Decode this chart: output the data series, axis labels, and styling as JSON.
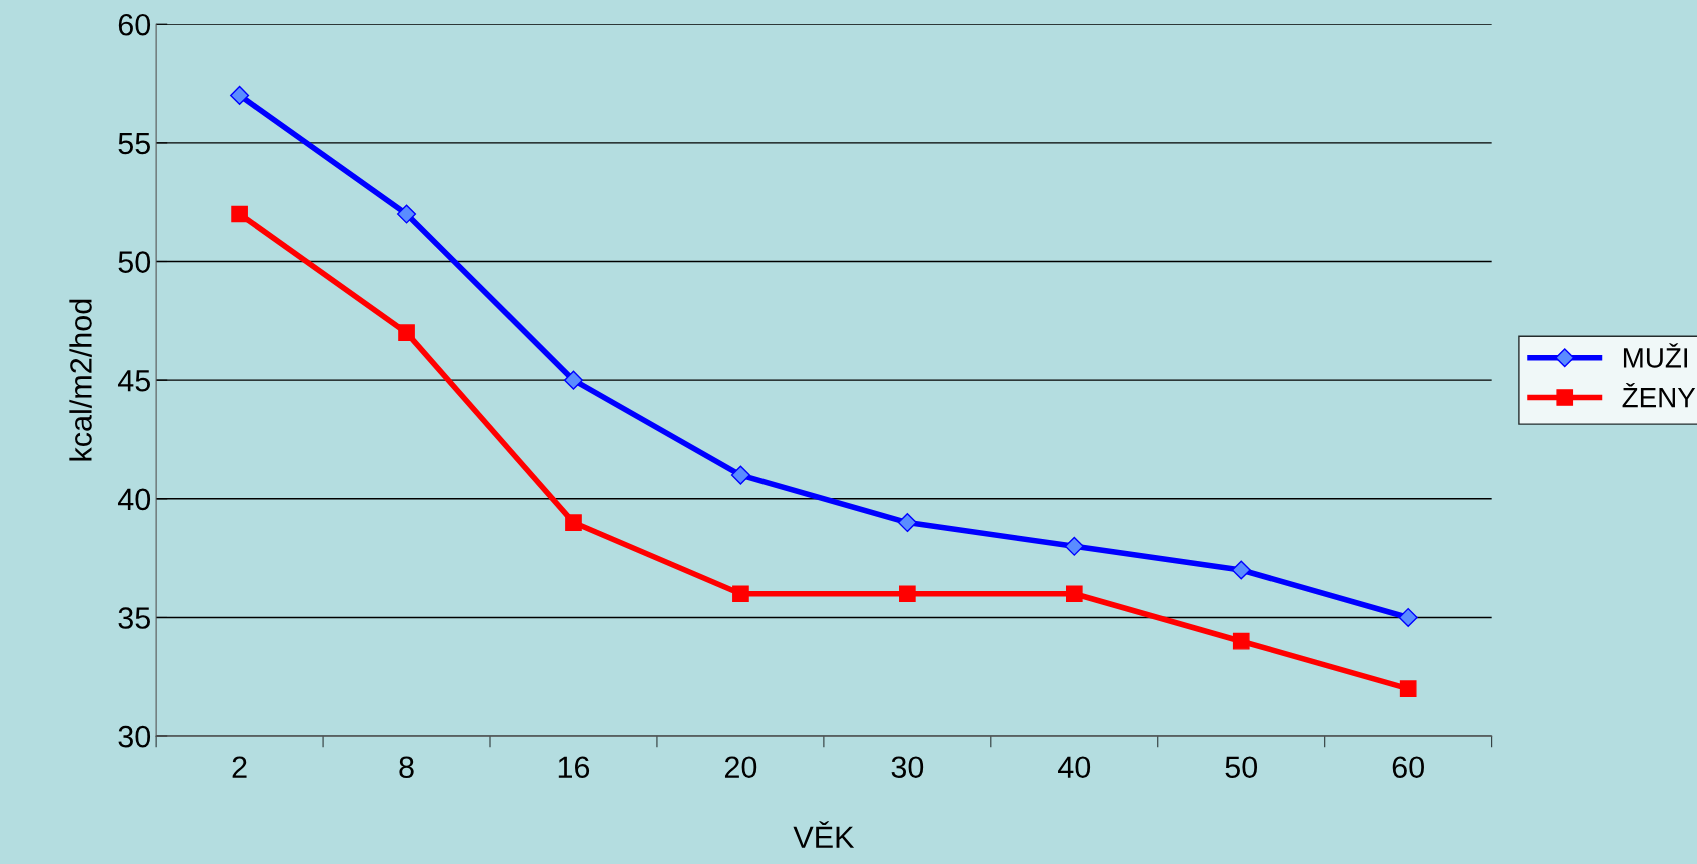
{
  "chart_data": {
    "type": "line",
    "xlabel": "VĚK",
    "ylabel": "kcal/m2/hod",
    "categories": [
      "2",
      "8",
      "16",
      "20",
      "30",
      "40",
      "50",
      "60"
    ],
    "series": [
      {
        "name": "MUŽI",
        "color": "#0000ff",
        "marker": "diamond",
        "values": [
          57,
          52,
          45,
          41,
          39,
          38,
          37,
          35
        ]
      },
      {
        "name": "ŽENY",
        "color": "#ff0000",
        "marker": "square",
        "values": [
          52,
          47,
          39,
          36,
          36,
          36,
          34,
          32
        ]
      }
    ],
    "ylim": [
      30,
      60
    ],
    "yticks": [
      30,
      35,
      40,
      45,
      50,
      55,
      60
    ],
    "grid": "y",
    "legend": "right",
    "line_style": "solid"
  }
}
